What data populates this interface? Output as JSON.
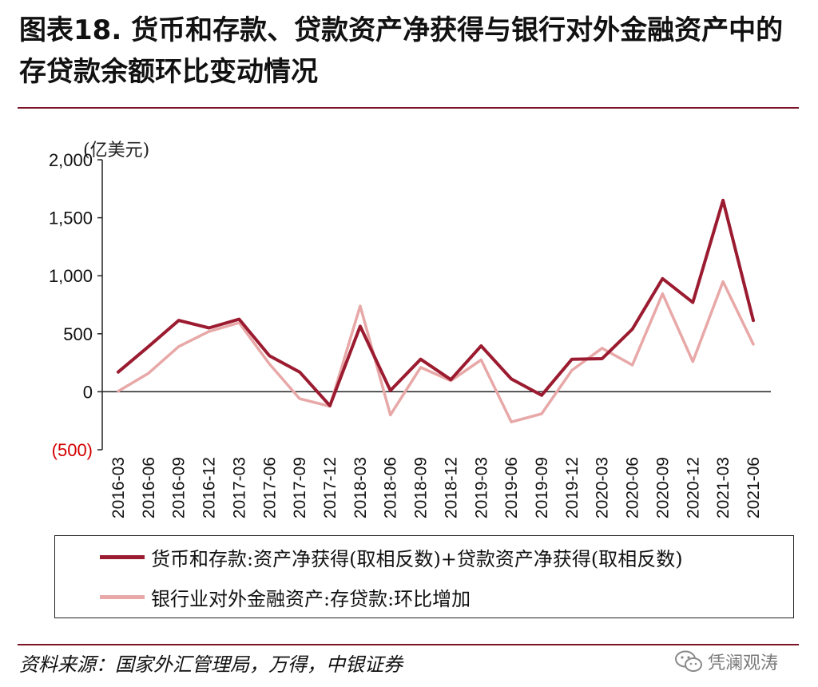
{
  "title": "图表18. 货币和存款、贷款资产净获得与银行对外金融资产中的存贷款余额环比变动情况",
  "unit_label": "(亿美元)",
  "source": "资料来源：国家外汇管理局，万得，中银证券",
  "watermark": "凭澜观涛",
  "colors": {
    "accent": "#7a1426",
    "series1": "#9b1b30",
    "series2": "#e8a8a8",
    "negative_tick": "#d40000"
  },
  "chart_data": {
    "type": "line",
    "title": "",
    "xlabel": "",
    "ylabel": "(亿美元)",
    "ylim": [
      -500,
      2000
    ],
    "yticks": [
      -500,
      0,
      500,
      1000,
      1500,
      2000
    ],
    "ytick_labels": [
      "(500)",
      "0",
      "500",
      "1,000",
      "1,500",
      "2,000"
    ],
    "categories": [
      "2016-03",
      "2016-06",
      "2016-09",
      "2016-12",
      "2017-03",
      "2017-06",
      "2017-09",
      "2017-12",
      "2018-03",
      "2018-06",
      "2018-09",
      "2018-12",
      "2019-03",
      "2019-06",
      "2019-09",
      "2019-12",
      "2020-03",
      "2020-06",
      "2020-09",
      "2020-12",
      "2021-03",
      "2021-06"
    ],
    "grid": false,
    "legend_position": "bottom",
    "series": [
      {
        "name": "货币和存款:资产净获得(取相反数)+贷款资产净获得(取相反数)",
        "color": "#9b1b30",
        "values": [
          170,
          390,
          615,
          550,
          625,
          310,
          170,
          -120,
          565,
          10,
          280,
          105,
          395,
          110,
          -30,
          280,
          285,
          540,
          975,
          770,
          1650,
          615
        ]
      },
      {
        "name": "银行业对外金融资产:存贷款:环比增加",
        "color": "#e8a8a8",
        "values": [
          5,
          160,
          390,
          520,
          595,
          240,
          -60,
          -125,
          740,
          -200,
          210,
          95,
          275,
          -260,
          -190,
          185,
          375,
          230,
          845,
          260,
          950,
          410
        ]
      }
    ]
  }
}
